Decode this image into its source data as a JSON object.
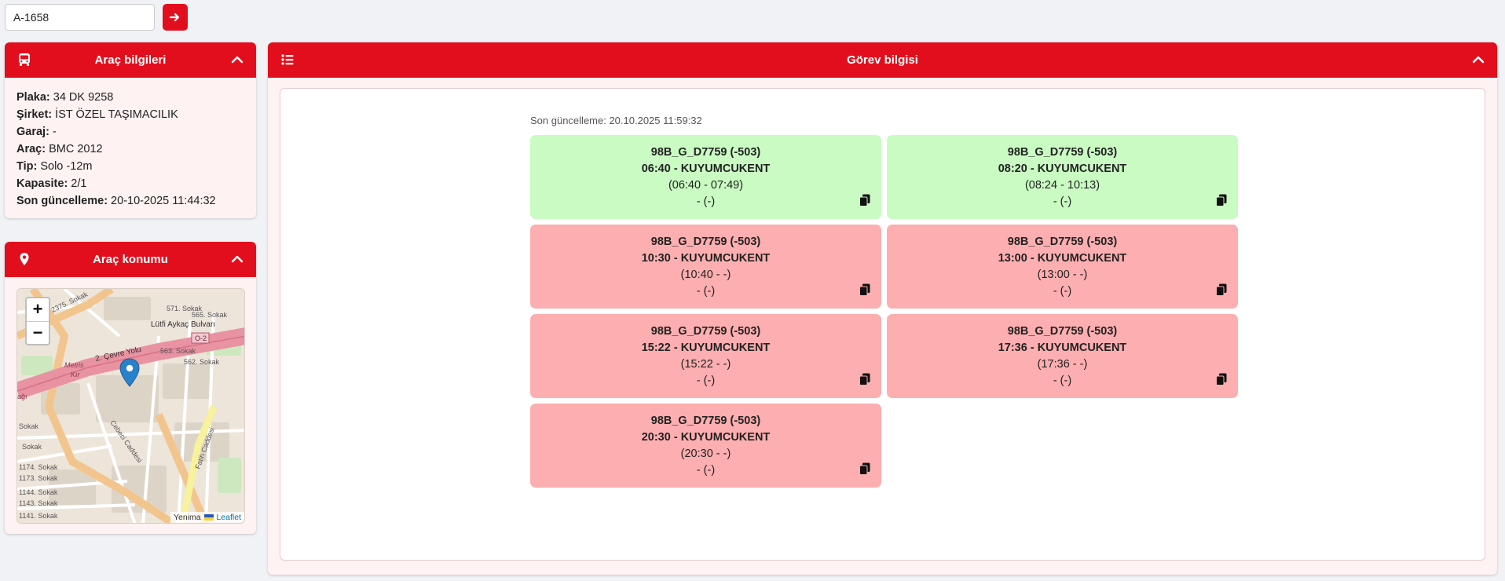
{
  "search": {
    "value": "A-1658"
  },
  "vehicle_card": {
    "title": "Araç bilgileri",
    "rows": [
      {
        "label": "Plaka:",
        "value": " 34 DK 9258"
      },
      {
        "label": "Şirket:",
        "value": " İST ÖZEL TAŞIMACILIK"
      },
      {
        "label": "Garaj:",
        "value": " -"
      },
      {
        "label": "Araç:",
        "value": " BMC 2012"
      },
      {
        "label": "Tip:",
        "value": " Solo -12m"
      },
      {
        "label": "Kapasite:",
        "value": " 2/1"
      },
      {
        "label": "Son güncelleme:",
        "value": " 20-10-2025 11:44:32"
      }
    ]
  },
  "location_card": {
    "title": "Araç konumu",
    "zoom_in": "+",
    "zoom_out": "−",
    "attribution_text": "Yenima",
    "attribution_link": "Leaflet",
    "map_labels": {
      "l1": "2375. Sokak",
      "l2": "571. Sokak",
      "l3": "565. Sokak",
      "l4": "Lütfi Aykaç Bulvarı",
      "l5": "O-2",
      "l6": "2. Çevre Yolu",
      "l7": "Metris",
      "l8": "Kır",
      "l9": "563. Sokak",
      "l10": "562. Sokak",
      "l11": "Cebeci Caddesi",
      "l12": "Fatih Caddesi",
      "l13": "1174. Sokak",
      "l14": "1173. Sokak",
      "l15": "1144. Sokak",
      "l16": "1143. Sokak",
      "l17": "1141. Sokak",
      "l18": "Sokak",
      "l19": "Sokak",
      "l20": "ağı"
    }
  },
  "task_card": {
    "title": "Görev bilgisi",
    "last_update": "Son güncelleme: 20.10.2025 11:59:32",
    "trips": [
      {
        "route": "98B_G_D7759 (-503)",
        "time": "06:40 - KUYUMCUKENT",
        "actual": "(06:40 - 07:49)",
        "extra": "- (-)",
        "status": "green"
      },
      {
        "route": "98B_G_D7759 (-503)",
        "time": "08:20 - KUYUMCUKENT",
        "actual": "(08:24 - 10:13)",
        "extra": "- (-)",
        "status": "green"
      },
      {
        "route": "98B_G_D7759 (-503)",
        "time": "10:30 - KUYUMCUKENT",
        "actual": "(10:40 - -)",
        "extra": "- (-)",
        "status": "red"
      },
      {
        "route": "98B_G_D7759 (-503)",
        "time": "13:00 - KUYUMCUKENT",
        "actual": "(13:00 - -)",
        "extra": "- (-)",
        "status": "red"
      },
      {
        "route": "98B_G_D7759 (-503)",
        "time": "15:22 - KUYUMCUKENT",
        "actual": "(15:22 - -)",
        "extra": "- (-)",
        "status": "red"
      },
      {
        "route": "98B_G_D7759 (-503)",
        "time": "17:36 - KUYUMCUKENT",
        "actual": "(17:36 - -)",
        "extra": "- (-)",
        "status": "red"
      },
      {
        "route": "98B_G_D7759 (-503)",
        "time": "20:30 - KUYUMCUKENT",
        "actual": "(20:30 - -)",
        "extra": "- (-)",
        "status": "red"
      }
    ]
  },
  "colors": {
    "accent": "#e30e1d",
    "trip_green": "#c9fbc3",
    "trip_red": "#fdaeb0",
    "card_bg": "#fff2f2"
  },
  "icons": {
    "go_button": "arrow-right-icon",
    "vehicle_header": "bus-icon",
    "location_header": "map-pin-icon",
    "task_header": "list-icon",
    "collapse": "chevron-up-icon",
    "trip_action": "copy-icon",
    "map_marker": "map-marker-icon"
  }
}
